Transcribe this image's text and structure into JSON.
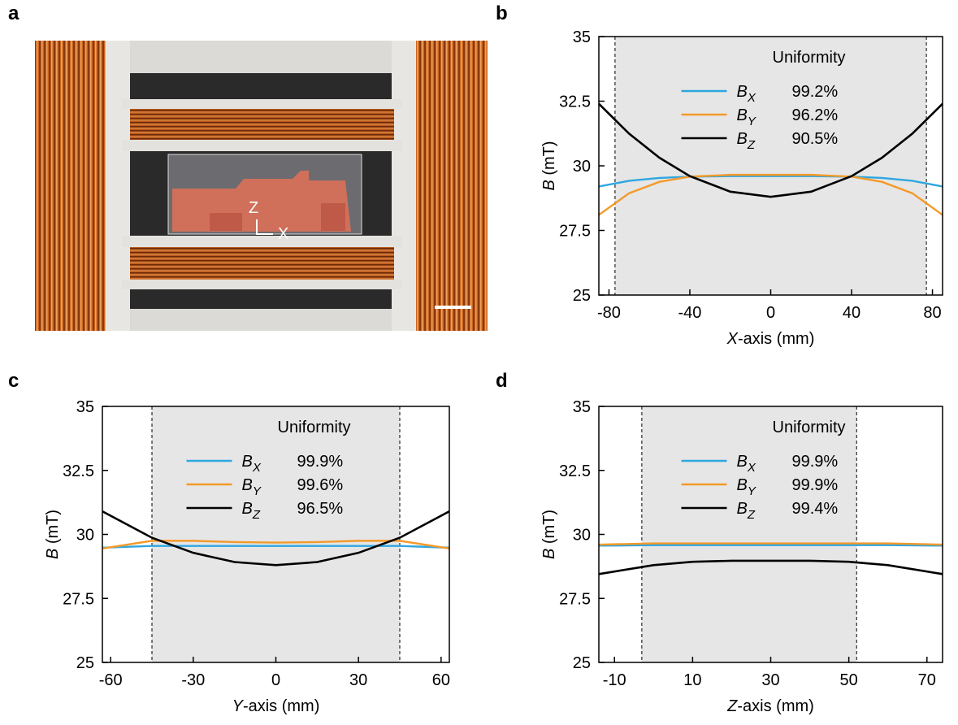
{
  "photo": {
    "label": "a",
    "axis_labels": [
      "Z",
      "X"
    ]
  },
  "chart_data": [
    {
      "type": "line",
      "panel_label": "b",
      "xlabel": "X-axis (mm)",
      "ylabel": "B (mT)",
      "xlim": [
        -85,
        85
      ],
      "xticks": [
        -80,
        -40,
        0,
        40,
        80
      ],
      "ylim": [
        25,
        35
      ],
      "yticks": [
        25,
        27.5,
        30,
        32.5,
        35
      ],
      "shaded_region": [
        -77,
        77
      ],
      "legend_title": "Uniformity",
      "legend": "upper center",
      "x": [
        -85,
        -70,
        -55,
        -40,
        -20,
        0,
        20,
        40,
        55,
        70,
        85
      ],
      "series": [
        {
          "name": "BX",
          "color": "#2ea7e0",
          "uniformity": 99.2,
          "uniformity_label": "99.2%",
          "values": [
            29.2,
            29.42,
            29.53,
            29.58,
            29.6,
            29.6,
            29.6,
            29.58,
            29.53,
            29.42,
            29.2
          ]
        },
        {
          "name": "BY",
          "color": "#f39a2b",
          "uniformity": 96.2,
          "uniformity_label": "96.2%",
          "values": [
            28.1,
            28.94,
            29.38,
            29.58,
            29.65,
            29.65,
            29.65,
            29.58,
            29.38,
            28.94,
            28.1
          ]
        },
        {
          "name": "BZ",
          "color": "#000000",
          "uniformity": 90.5,
          "uniformity_label": "90.5%",
          "values": [
            32.4,
            31.24,
            30.31,
            29.6,
            29.0,
            28.8,
            29.0,
            29.6,
            30.31,
            31.24,
            32.4
          ]
        }
      ]
    },
    {
      "type": "line",
      "panel_label": "c",
      "xlabel": "Y-axis (mm)",
      "ylabel": "B (mT)",
      "xlim": [
        -63,
        63
      ],
      "xticks": [
        -60,
        -30,
        0,
        30,
        60
      ],
      "ylim": [
        25,
        35
      ],
      "yticks": [
        25,
        27.5,
        30,
        32.5,
        35
      ],
      "shaded_region": [
        -45,
        45
      ],
      "legend_title": "Uniformity",
      "legend": "upper center",
      "x": [
        -63,
        -45,
        -30,
        -15,
        0,
        15,
        30,
        45,
        63
      ],
      "series": [
        {
          "name": "BX",
          "color": "#2ea7e0",
          "uniformity": 99.9,
          "uniformity_label": "99.9%",
          "values": [
            29.48,
            29.55,
            29.55,
            29.55,
            29.55,
            29.55,
            29.55,
            29.55,
            29.48
          ]
        },
        {
          "name": "BY",
          "color": "#f39a2b",
          "uniformity": 99.6,
          "uniformity_label": "99.6%",
          "values": [
            29.45,
            29.75,
            29.75,
            29.7,
            29.68,
            29.7,
            29.75,
            29.75,
            29.45
          ]
        },
        {
          "name": "BZ",
          "color": "#000000",
          "uniformity": 96.5,
          "uniformity_label": "96.5%",
          "values": [
            30.9,
            29.87,
            29.28,
            28.92,
            28.8,
            28.92,
            29.28,
            29.87,
            30.9
          ]
        }
      ]
    },
    {
      "type": "line",
      "panel_label": "d",
      "xlabel": "Z-axis (mm)",
      "ylabel": "B (mT)",
      "xlim": [
        -14,
        74
      ],
      "xticks": [
        -10,
        10,
        30,
        50,
        70
      ],
      "ylim": [
        25,
        35
      ],
      "yticks": [
        25,
        27.5,
        30,
        32.5,
        35
      ],
      "shaded_region": [
        -3,
        52
      ],
      "legend_title": "Uniformity",
      "legend": "upper center",
      "x": [
        -14,
        0,
        10,
        20,
        30,
        40,
        50,
        60,
        74
      ],
      "series": [
        {
          "name": "BX",
          "color": "#2ea7e0",
          "uniformity": 99.9,
          "uniformity_label": "99.9%",
          "values": [
            29.56,
            29.58,
            29.58,
            29.58,
            29.58,
            29.58,
            29.58,
            29.58,
            29.56
          ]
        },
        {
          "name": "BY",
          "color": "#f39a2b",
          "uniformity": 99.9,
          "uniformity_label": "99.9%",
          "values": [
            29.6,
            29.65,
            29.65,
            29.65,
            29.65,
            29.65,
            29.65,
            29.65,
            29.6
          ]
        },
        {
          "name": "BZ",
          "color": "#000000",
          "uniformity": 99.4,
          "uniformity_label": "99.4%",
          "values": [
            28.45,
            28.8,
            28.93,
            28.97,
            28.97,
            28.97,
            28.93,
            28.8,
            28.45
          ]
        }
      ]
    }
  ]
}
